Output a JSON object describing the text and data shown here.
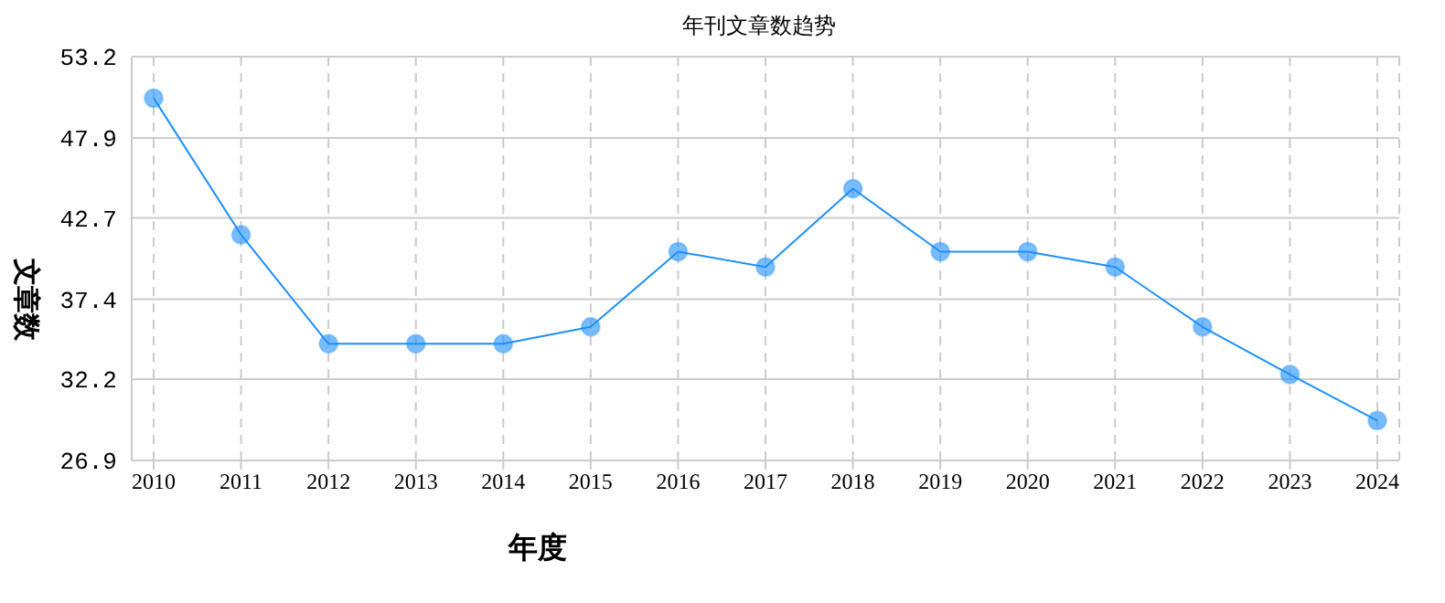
{
  "chart_data": {
    "type": "line",
    "title": "年刊文章数趋势",
    "xlabel": "年度",
    "ylabel": "文章数",
    "categories": [
      "2010",
      "2011",
      "2012",
      "2013",
      "2014",
      "2015",
      "2016",
      "2017",
      "2018",
      "2019",
      "2020",
      "2021",
      "2022",
      "2023",
      "2024"
    ],
    "series": [
      {
        "color": "#1e90ff",
        "values": [
          50.5,
          41.6,
          34.5,
          34.5,
          34.5,
          35.6,
          40.5,
          39.5,
          44.6,
          40.5,
          40.5,
          39.5,
          35.6,
          32.5,
          29.5
        ]
      }
    ],
    "ylim": [
      26.9,
      53.2
    ],
    "yticks": [
      26.9,
      32.2,
      37.4,
      42.7,
      47.9,
      53.2
    ],
    "grid": true,
    "marker": "circle",
    "line_style": "solid"
  }
}
